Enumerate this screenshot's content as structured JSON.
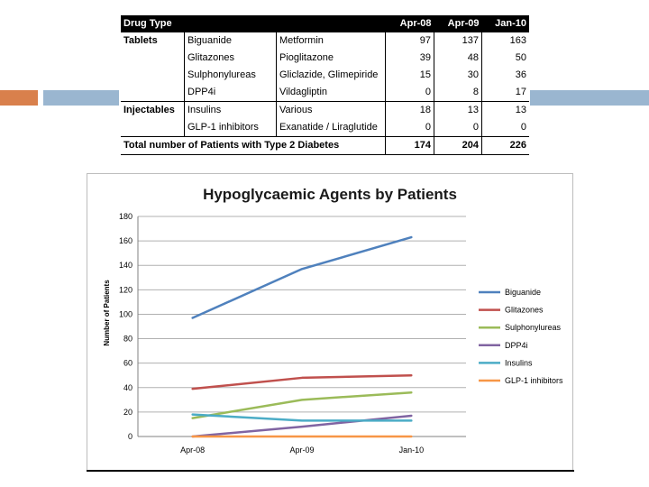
{
  "table": {
    "header": {
      "drug_type": "Drug Type",
      "periods": [
        "Apr-08",
        "Apr-09",
        "Jan-10"
      ]
    },
    "rows": [
      {
        "group": "Tablets",
        "class": "Biguanide",
        "drug": "Metformin",
        "values": [
          "97",
          "137",
          "163"
        ]
      },
      {
        "group": "",
        "class": "Glitazones",
        "drug": "Pioglitazone",
        "values": [
          "39",
          "48",
          "50"
        ]
      },
      {
        "group": "",
        "class": "Sulphonylureas",
        "drug": "Gliclazide, Glimepiride",
        "values": [
          "15",
          "30",
          "36"
        ]
      },
      {
        "group": "",
        "class": "DPP4i",
        "drug": "Vildagliptin",
        "values": [
          "0",
          "8",
          "17"
        ]
      },
      {
        "group": "Injectables",
        "class": "Insulins",
        "drug": "Various",
        "values": [
          "18",
          "13",
          "13"
        ]
      },
      {
        "group": "",
        "class": "GLP-1 inhibitors",
        "drug": "Exanatide / Liraglutide",
        "values": [
          "0",
          "0",
          "0"
        ]
      }
    ],
    "total": {
      "label": "Total number of Patients with Type 2 Diabetes",
      "values": [
        "174",
        "204",
        "226"
      ]
    }
  },
  "chart_data": {
    "type": "line",
    "title": "Hypoglycaemic Agents by Patients",
    "xlabel": "",
    "ylabel": "Number of Patients",
    "categories": [
      "Apr-08",
      "Apr-09",
      "Jan-10"
    ],
    "ylim": [
      0,
      180
    ],
    "yticks": [
      0,
      20,
      40,
      60,
      80,
      100,
      120,
      140,
      160,
      180
    ],
    "grid": true,
    "legend": "right",
    "series": [
      {
        "name": "Biguanide",
        "values": [
          97,
          137,
          163
        ],
        "color": "#4f81bd"
      },
      {
        "name": "Glitazones",
        "values": [
          39,
          48,
          50
        ],
        "color": "#c0504d"
      },
      {
        "name": "Sulphonylureas",
        "values": [
          15,
          30,
          36
        ],
        "color": "#9bbb59"
      },
      {
        "name": "DPP4i",
        "values": [
          0,
          8,
          17
        ],
        "color": "#8064a2"
      },
      {
        "name": "Insulins",
        "values": [
          18,
          13,
          13
        ],
        "color": "#4bacc6"
      },
      {
        "name": "GLP-1 inhibitors",
        "values": [
          0,
          0,
          0
        ],
        "color": "#f79646"
      }
    ]
  }
}
